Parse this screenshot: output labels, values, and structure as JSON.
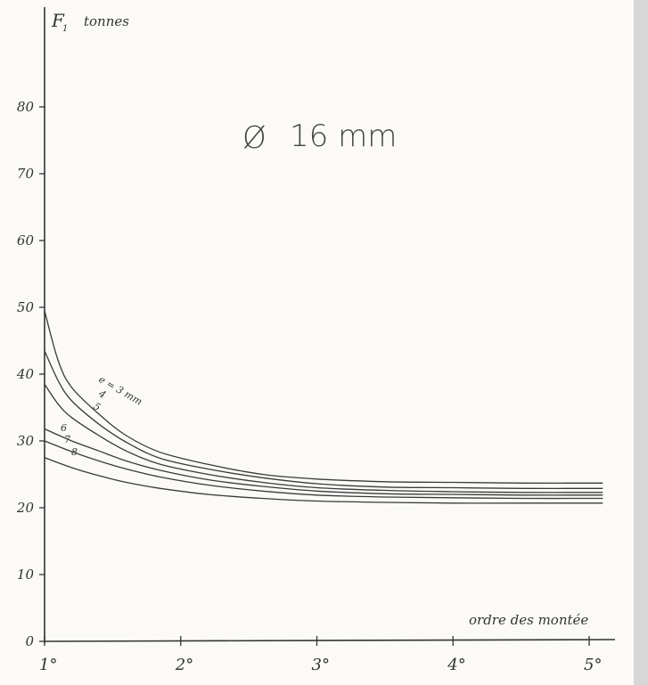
{
  "chart_data": {
    "type": "line",
    "title_symbol": "Ø",
    "title": "16 mm",
    "ylabel_symbol": "F",
    "ylabel_subscript": "1",
    "ylabel": "tonnes",
    "xlabel": "ordre des montée",
    "x_ticks": [
      1,
      2,
      3,
      4,
      5
    ],
    "x_tick_labels": [
      "1°",
      "2°",
      "3°",
      "4°",
      "5°"
    ],
    "y_ticks": [
      0,
      10,
      20,
      30,
      40,
      50,
      60,
      70,
      80
    ],
    "y_tick_labels": [
      "0",
      "10",
      "20",
      "30",
      "40",
      "50",
      "60",
      "70",
      "80"
    ],
    "xlim": [
      1,
      5.1
    ],
    "ylim": [
      0,
      90
    ],
    "grid": false,
    "line_color": "#3a3a3a",
    "series": [
      {
        "name": "e = 3 mm",
        "x": [
          1.0,
          1.1,
          1.2,
          1.4,
          1.6,
          1.85,
          2.2,
          2.6,
          3.0,
          3.5,
          4.0,
          4.5,
          5.1
        ],
        "y": [
          49.5,
          42.0,
          38.0,
          34.0,
          30.8,
          28.3,
          26.5,
          25.0,
          24.3,
          23.9,
          23.8,
          23.7,
          23.7
        ]
      },
      {
        "name": "4",
        "x": [
          1.0,
          1.1,
          1.2,
          1.4,
          1.6,
          1.85,
          2.2,
          2.6,
          3.0,
          3.5,
          4.0,
          4.5,
          5.1
        ],
        "y": [
          43.5,
          39.0,
          36.0,
          32.5,
          29.8,
          27.4,
          25.8,
          24.5,
          23.6,
          23.1,
          23.0,
          22.9,
          22.9
        ]
      },
      {
        "name": "5",
        "x": [
          1.0,
          1.1,
          1.2,
          1.4,
          1.6,
          1.85,
          2.2,
          2.6,
          3.0,
          3.5,
          4.0,
          4.5,
          5.1
        ],
        "y": [
          38.5,
          35.5,
          33.5,
          30.8,
          28.5,
          26.5,
          25.0,
          23.8,
          23.0,
          22.6,
          22.4,
          22.3,
          22.3
        ]
      },
      {
        "name": "6",
        "x": [
          1.0,
          1.2,
          1.4,
          1.6,
          1.85,
          2.2,
          2.6,
          3.0,
          3.5,
          4.0,
          4.5,
          5.1
        ],
        "y": [
          31.8,
          30.0,
          28.5,
          27.0,
          25.6,
          24.2,
          23.2,
          22.5,
          22.1,
          22.0,
          21.9,
          21.9
        ]
      },
      {
        "name": "7",
        "x": [
          1.0,
          1.2,
          1.4,
          1.6,
          1.85,
          2.2,
          2.6,
          3.0,
          3.5,
          4.0,
          4.5,
          5.1
        ],
        "y": [
          30.0,
          28.4,
          27.0,
          25.8,
          24.6,
          23.4,
          22.5,
          21.9,
          21.6,
          21.5,
          21.4,
          21.4
        ]
      },
      {
        "name": "8",
        "x": [
          1.0,
          1.2,
          1.4,
          1.6,
          1.85,
          2.2,
          2.6,
          3.0,
          3.5,
          4.0,
          4.5,
          5.1
        ],
        "y": [
          27.5,
          26.0,
          24.8,
          23.8,
          22.9,
          22.0,
          21.4,
          21.0,
          20.8,
          20.7,
          20.7,
          20.7
        ]
      }
    ]
  }
}
